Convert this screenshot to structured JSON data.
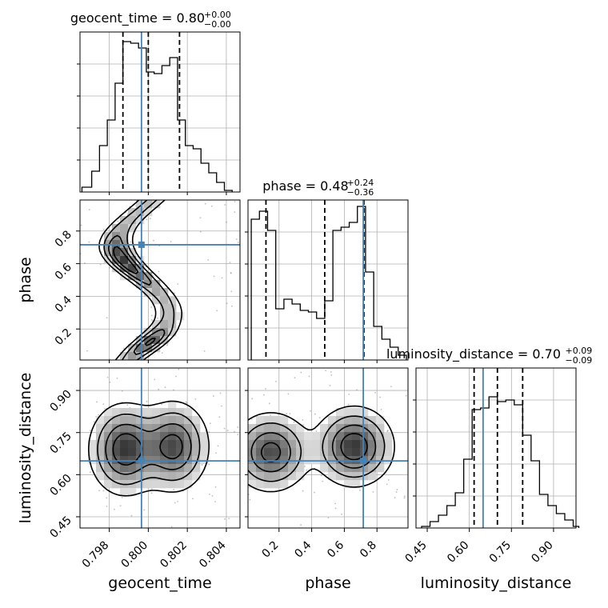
{
  "chart_data": [
    {
      "type": "histogram",
      "param": "geocent_time",
      "title_label": "geocent_time",
      "median_text": "0.80",
      "plus_text": "+0.00",
      "minus_text": "−0.00",
      "xlim": [
        0.7965,
        0.8047
      ],
      "ylim": [
        0,
        1.0
      ],
      "bin_edges": [
        0.7966,
        0.7971,
        0.7975,
        0.7979,
        0.7983,
        0.7987,
        0.7991,
        0.7995,
        0.7999,
        0.8003,
        0.8007,
        0.8011,
        0.8015,
        0.8019,
        0.8023,
        0.8027,
        0.8031,
        0.8035,
        0.8039,
        0.8043
      ],
      "counts": [
        0.03,
        0.13,
        0.29,
        0.45,
        0.68,
        0.94,
        0.93,
        0.9,
        0.75,
        0.74,
        0.79,
        0.84,
        0.45,
        0.29,
        0.27,
        0.18,
        0.12,
        0.06,
        0.01
      ],
      "quantile_lines": [
        0.7987,
        0.8,
        0.8016
      ],
      "truth": 0.79965
    },
    {
      "type": "histogram",
      "param": "phase",
      "title_label": "phase",
      "median_text": "0.48",
      "plus_text": "+0.24",
      "minus_text": "−0.36",
      "xlim": [
        0.01,
        0.99
      ],
      "ylim": [
        0,
        1.0
      ],
      "bin_edges": [
        0.03,
        0.08,
        0.13,
        0.18,
        0.23,
        0.28,
        0.33,
        0.38,
        0.43,
        0.48,
        0.53,
        0.58,
        0.63,
        0.68,
        0.73,
        0.78,
        0.83,
        0.88,
        0.93,
        0.98
      ],
      "counts": [
        0.88,
        0.93,
        0.81,
        0.32,
        0.38,
        0.35,
        0.31,
        0.3,
        0.26,
        0.37,
        0.81,
        0.83,
        0.86,
        0.96,
        0.55,
        0.21,
        0.13,
        0.08,
        0.03
      ],
      "quantile_lines": [
        0.12,
        0.48,
        0.72
      ],
      "truth": 0.716
    },
    {
      "type": "histogram",
      "param": "luminosity_distance",
      "title_label": "luminosity_distance",
      "median_text": "0.70",
      "plus_text": "+0.09",
      "minus_text": "−0.09",
      "xlim": [
        0.41,
        0.98
      ],
      "ylim": [
        0,
        1.0
      ],
      "bin_edges": [
        0.43,
        0.46,
        0.49,
        0.52,
        0.55,
        0.58,
        0.61,
        0.64,
        0.67,
        0.7,
        0.73,
        0.76,
        0.79,
        0.82,
        0.85,
        0.88,
        0.91,
        0.94,
        0.97,
        0.99
      ],
      "counts": [
        0.01,
        0.04,
        0.08,
        0.14,
        0.22,
        0.43,
        0.74,
        0.75,
        0.82,
        0.79,
        0.8,
        0.77,
        0.58,
        0.42,
        0.21,
        0.14,
        0.09,
        0.05,
        0.01
      ],
      "quantile_lines": [
        0.617,
        0.7,
        0.79
      ],
      "truth": 0.649
    },
    {
      "type": "contour-2d",
      "x_param": "geocent_time",
      "y_param": "phase",
      "xlim": [
        0.7965,
        0.8047
      ],
      "ylim": [
        0.01,
        0.99
      ],
      "truth": [
        0.79965,
        0.716
      ]
    },
    {
      "type": "contour-2d",
      "x_param": "geocent_time",
      "y_param": "luminosity_distance",
      "xlim": [
        0.7965,
        0.8047
      ],
      "ylim": [
        0.41,
        0.98
      ],
      "truth": [
        0.79965,
        0.649
      ]
    },
    {
      "type": "contour-2d",
      "x_param": "phase",
      "y_param": "luminosity_distance",
      "xlim": [
        0.01,
        0.99
      ],
      "ylim": [
        0.41,
        0.98
      ],
      "truth": [
        0.716,
        0.649
      ]
    }
  ],
  "axes": {
    "x_labels": [
      "geocent_time",
      "phase",
      "luminosity_distance"
    ],
    "y_labels": [
      "phase",
      "luminosity_distance"
    ],
    "x_ticks": {
      "geocent_time": [
        0.798,
        0.8,
        0.802,
        0.804
      ],
      "phase": [
        0.2,
        0.4,
        0.6,
        0.8
      ],
      "luminosity_distance": [
        0.45,
        0.6,
        0.75,
        0.9
      ]
    },
    "x_tick_labels": {
      "geocent_time": [
        "0.798",
        "0.800",
        "0.802",
        "0.804"
      ],
      "phase": [
        "0.2",
        "0.4",
        "0.6",
        "0.8"
      ],
      "luminosity_distance": [
        "0.45",
        "0.60",
        "0.75",
        "0.90"
      ]
    },
    "y_ticks": {
      "phase": [
        0.2,
        0.4,
        0.6,
        0.8
      ],
      "luminosity_distance": [
        0.45,
        0.6,
        0.75,
        0.9
      ]
    },
    "y_tick_labels": {
      "phase": [
        "0.2",
        "0.4",
        "0.6",
        "0.8"
      ],
      "luminosity_distance": [
        "0.45",
        "0.60",
        "0.75",
        "0.90"
      ]
    }
  },
  "colors": {
    "truth": "#4682b4",
    "line": "#000000",
    "grid": "#b0b0b0",
    "fill": "#5a5a5a"
  }
}
